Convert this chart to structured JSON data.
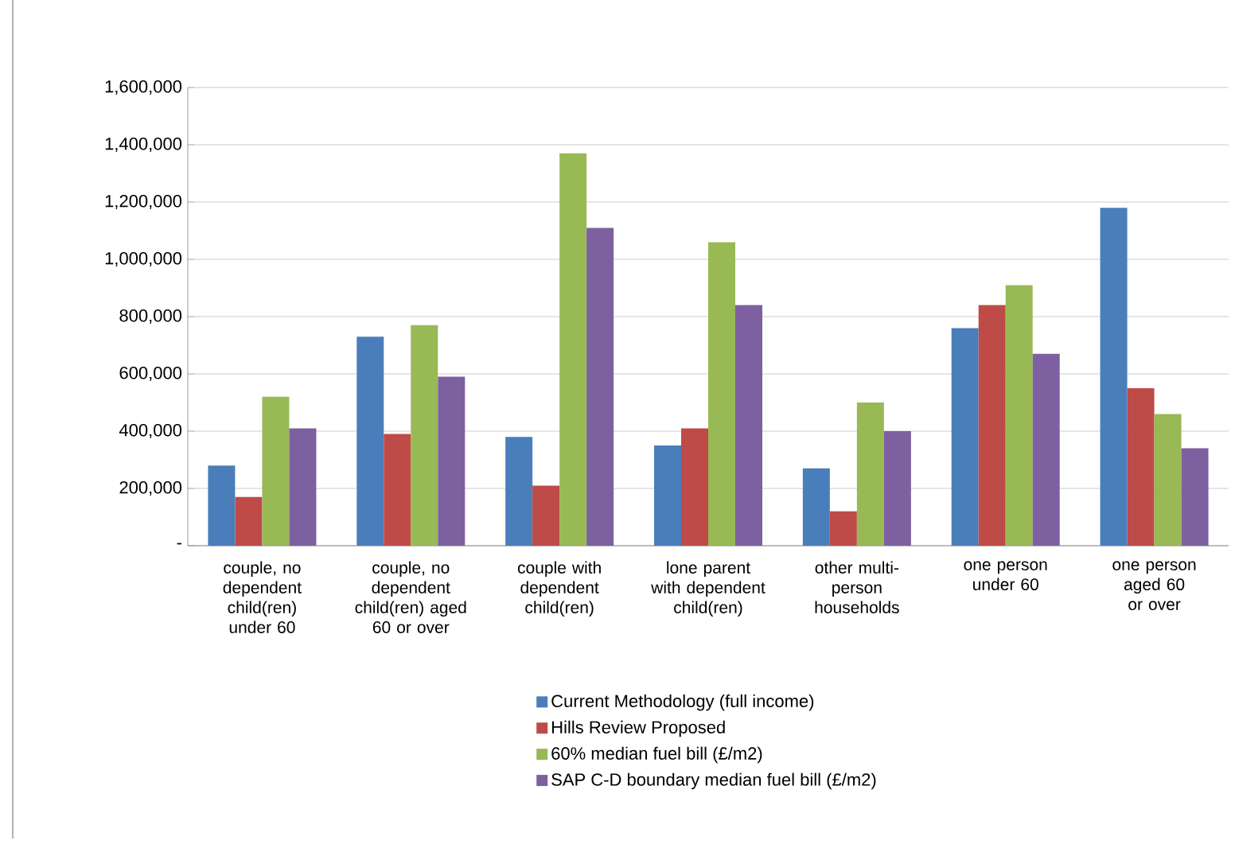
{
  "chart_data": {
    "type": "bar",
    "categories": [
      "couple, no dependent child(ren) under 60",
      "couple, no dependent child(ren) aged 60 or over",
      "couple with dependent child(ren)",
      "lone parent with dependent child(ren)",
      "other multi-person households",
      "one person under 60",
      "one person aged 60 or over"
    ],
    "series": [
      {
        "name": "Current Methodology (full income)",
        "color": "#4a7ebb",
        "values": [
          280000,
          730000,
          380000,
          350000,
          270000,
          760000,
          1180000
        ]
      },
      {
        "name": "Hills Review Proposed",
        "color": "#be4b48",
        "values": [
          170000,
          390000,
          210000,
          410000,
          120000,
          840000,
          550000
        ]
      },
      {
        "name": "60% median fuel bill (£/m2)",
        "color": "#98b954",
        "values": [
          520000,
          770000,
          1370000,
          1060000,
          500000,
          910000,
          460000
        ]
      },
      {
        "name": "SAP C-D boundary median fuel bill (£/m2)",
        "color": "#7d60a0",
        "values": [
          410000,
          590000,
          1110000,
          840000,
          400000,
          670000,
          340000
        ]
      }
    ],
    "ylim": [
      0,
      1600000
    ],
    "yticks": [
      {
        "value": 0,
        "label": "-"
      },
      {
        "value": 200000,
        "label": "200,000"
      },
      {
        "value": 400000,
        "label": "400,000"
      },
      {
        "value": 600000,
        "label": "600,000"
      },
      {
        "value": 800000,
        "label": "800,000"
      },
      {
        "value": 1000000,
        "label": "1,000,000"
      },
      {
        "value": 1200000,
        "label": "1,200,000"
      },
      {
        "value": 1400000,
        "label": "1,400,000"
      },
      {
        "value": 1600000,
        "label": "1,600,000"
      }
    ],
    "grid": "y",
    "legend": "bottom"
  }
}
